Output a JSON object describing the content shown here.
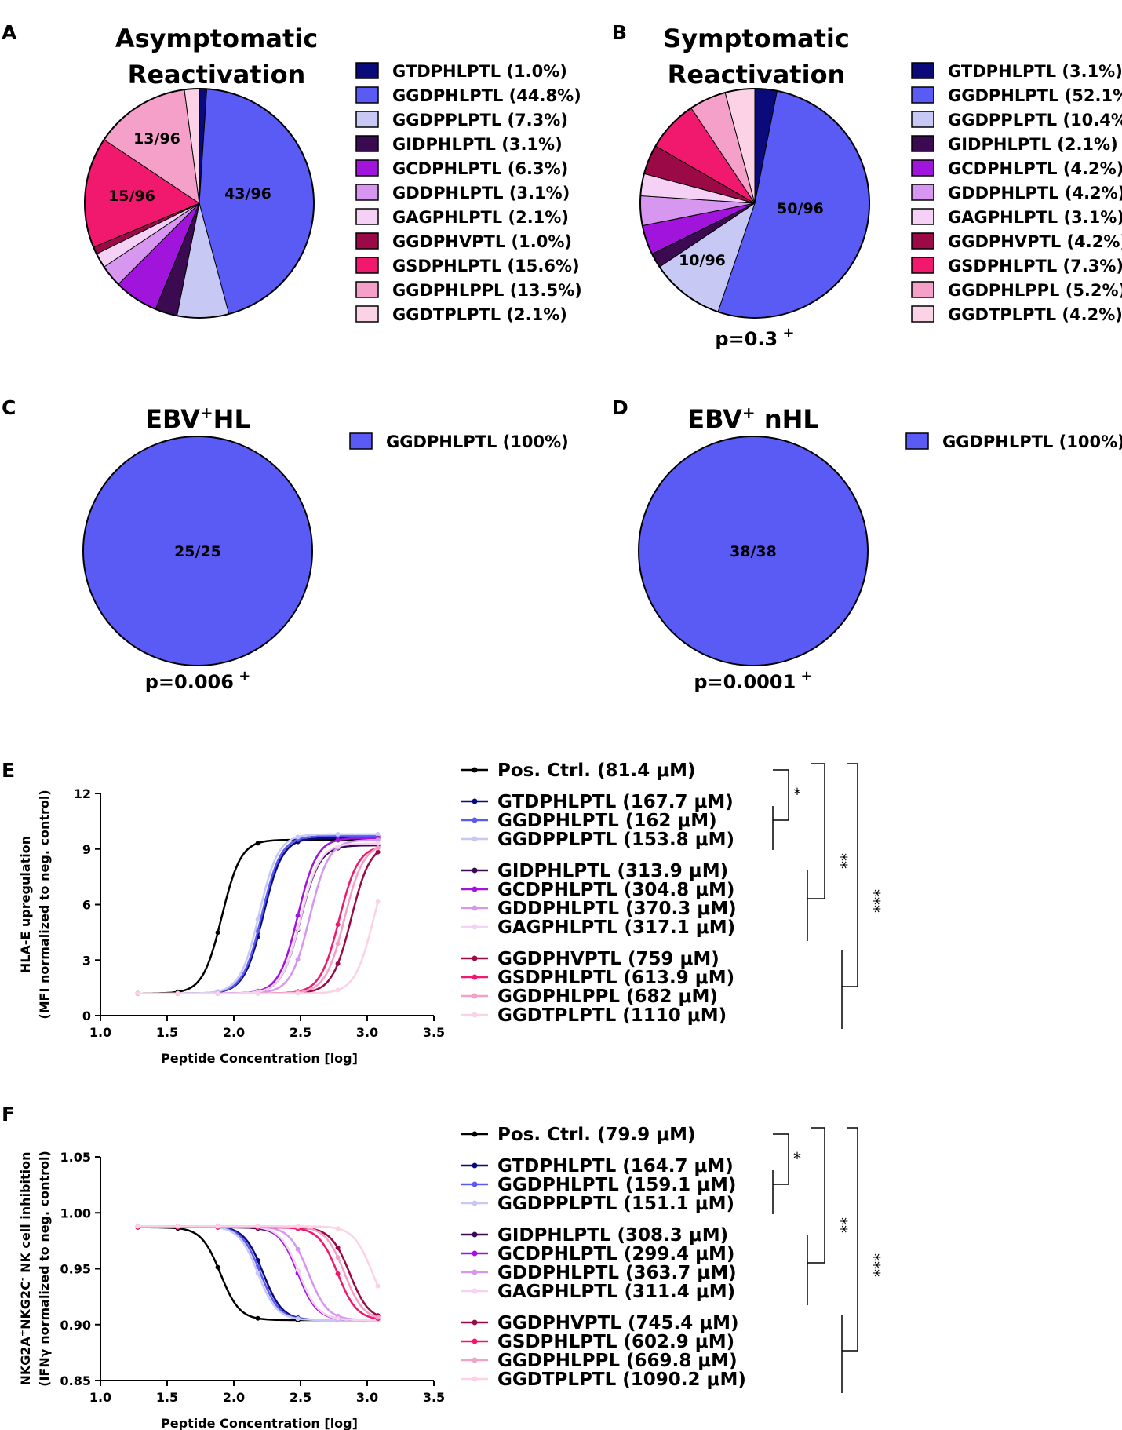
{
  "panels_pie": [
    {
      "letter": "A",
      "title_lines": [
        "Asymptomatic",
        "Reactivation"
      ],
      "pvalue": null,
      "slices": [
        {
          "name": "GTDPHLPTL",
          "pct": "1.0%",
          "count": 1,
          "color": "#0a0a7a"
        },
        {
          "name": "GGDPHLPTL",
          "pct": "44.8%",
          "count": 43,
          "color": "#5a5af5",
          "label": "43/96"
        },
        {
          "name": "GGDPPLPTL",
          "pct": "7.3%",
          "count": 7,
          "color": "#c8c8f5"
        },
        {
          "name": "GIDPHLPTL",
          "pct": "3.1%",
          "count": 3,
          "color": "#3c0a50"
        },
        {
          "name": "GCDPHLPTL",
          "pct": "6.3%",
          "count": 6,
          "color": "#a014dc"
        },
        {
          "name": "GDDPHLPTL",
          "pct": "3.1%",
          "count": 3,
          "color": "#d796f0"
        },
        {
          "name": "GAGPHLPTL",
          "pct": "2.1%",
          "count": 2,
          "color": "#f5d2f5"
        },
        {
          "name": "GGDPHVPTL",
          "pct": "1.0%",
          "count": 1,
          "color": "#9b0a46"
        },
        {
          "name": "GSDPHLPTL",
          "pct": "15.6%",
          "count": 15,
          "color": "#f0196e",
          "label": "15/96"
        },
        {
          "name": "GGDPHLPPL",
          "pct": "13.5%",
          "count": 13,
          "color": "#f5a0c8",
          "label": "13/96"
        },
        {
          "name": "GGDTPLPTL",
          "pct": "2.1%",
          "count": 2,
          "color": "#fcd2e6"
        }
      ]
    },
    {
      "letter": "B",
      "title_lines": [
        "Symptomatic",
        "Reactivation"
      ],
      "pvalue": "p=0.3",
      "slices": [
        {
          "name": "GTDPHLPTL",
          "pct": "3.1%",
          "count": 3,
          "color": "#0a0a7a"
        },
        {
          "name": "GGDPHLPTL",
          "pct": "52.1%",
          "count": 50,
          "color": "#5a5af5",
          "label": "50/96"
        },
        {
          "name": "GGDPPLPTL",
          "pct": "10.4%",
          "count": 10,
          "color": "#c8c8f5",
          "label": "10/96"
        },
        {
          "name": "GIDPHLPTL",
          "pct": "2.1%",
          "count": 2,
          "color": "#3c0a50"
        },
        {
          "name": "GCDPHLPTL",
          "pct": "4.2%",
          "count": 4,
          "color": "#a014dc"
        },
        {
          "name": "GDDPHLPTL",
          "pct": "4.2%",
          "count": 4,
          "color": "#d796f0"
        },
        {
          "name": "GAGPHLPTL",
          "pct": "3.1%",
          "count": 3,
          "color": "#f5d2f5"
        },
        {
          "name": "GGDPHVPTL",
          "pct": "4.2%",
          "count": 4,
          "color": "#9b0a46"
        },
        {
          "name": "GSDPHLPTL",
          "pct": "7.3%",
          "count": 7,
          "color": "#f0196e"
        },
        {
          "name": "GGDPHLPPL",
          "pct": "5.2%",
          "count": 5,
          "color": "#f5a0c8"
        },
        {
          "name": "GGDTPLPTL",
          "pct": "4.2%",
          "count": 4,
          "color": "#fcd2e6"
        }
      ]
    },
    {
      "letter": "C",
      "title_main": "EBV",
      "title_sup": "+",
      "title_tail": "HL",
      "pvalue": "p=0.006",
      "slices": [
        {
          "name": "GGDPHLPTL",
          "pct": "100%",
          "count": 25,
          "color": "#5a5af5",
          "label": "25/25"
        }
      ]
    },
    {
      "letter": "D",
      "title_main": "EBV",
      "title_sup": "+",
      "title_tail": " nHL",
      "pvalue": "p=0.0001",
      "slices": [
        {
          "name": "GGDPHLPTL",
          "pct": "100%",
          "count": 38,
          "color": "#5a5af5",
          "label": "38/38"
        }
      ]
    }
  ],
  "pvalue_sup": "+",
  "chart_data": [
    {
      "type": "line",
      "panel": "E",
      "xlabel": "Peptide Concentration [log]",
      "ylabel_lines": [
        "HLA-E upregulation",
        "(MFI normalized to neg. control)"
      ],
      "xlim": [
        1.0,
        3.5
      ],
      "ylim": [
        0,
        12
      ],
      "xticks": [
        "1.0",
        "1.5",
        "2.0",
        "2.5",
        "3.0",
        "3.5"
      ],
      "yticks": [
        "0",
        "3",
        "6",
        "9",
        "12"
      ],
      "x": [
        1.28,
        1.58,
        1.88,
        2.18,
        2.48,
        2.78,
        3.08
      ],
      "direction": "up",
      "bottom": 1.2,
      "top_default": 9.4,
      "unit": "μM",
      "groups": [
        [
          {
            "name": "Pos. Ctrl.",
            "ec50": "81.4",
            "log": 1.91,
            "color": "#000000",
            "top": 9.5
          }
        ],
        [
          {
            "name": "GTDPHLPTL",
            "ec50": "167.7",
            "log": 2.22,
            "color": "#0a0a7a",
            "top": 9.6
          },
          {
            "name": "GGDPHLPTL",
            "ec50": "162",
            "log": 2.21,
            "color": "#5a5af5",
            "top": 9.7
          },
          {
            "name": "GGDPPLPTL",
            "ec50": "153.8",
            "log": 2.19,
            "color": "#c8c8f5",
            "top": 9.8
          }
        ],
        [
          {
            "name": "GIDPHLPTL",
            "ec50": "313.9",
            "log": 2.5,
            "color": "#3c0a50",
            "top": 9.2
          },
          {
            "name": "GCDPHLPTL",
            "ec50": "304.8",
            "log": 2.48,
            "color": "#a014dc",
            "top": 9.6
          },
          {
            "name": "GDDPHLPTL",
            "ec50": "370.3",
            "log": 2.57,
            "color": "#d796f0",
            "top": 9.5
          },
          {
            "name": "GAGPHLPTL",
            "ec50": "317.1",
            "log": 2.5,
            "color": "#f5d2f5",
            "top": 9.3
          }
        ],
        [
          {
            "name": "GGDPHVPTL",
            "ec50": "759",
            "log": 2.88,
            "color": "#9b0a46",
            "top": 9.3
          },
          {
            "name": "GSDPHLPTL",
            "ec50": "613.9",
            "log": 2.79,
            "color": "#f0196e",
            "top": 9.2
          },
          {
            "name": "GGDPHLPPL",
            "ec50": "682",
            "log": 2.83,
            "color": "#f5a0c8",
            "top": 9.3
          },
          {
            "name": "GGDTPLPTL",
            "ec50": "1110",
            "log": 3.05,
            "color": "#fcd2e6",
            "top": 9.4
          }
        ]
      ],
      "sig_labels": [
        "*",
        "**",
        "***"
      ]
    },
    {
      "type": "line",
      "panel": "F",
      "xlabel": "Peptide Concentration [log]",
      "ylabel_lines": [
        "NKG2A+NKG2C- NK cell inhibition",
        "(IFNγ normalized to neg. control)"
      ],
      "ylabel_sup": {
        "a": "+",
        "c": "-"
      },
      "xlim": [
        1.0,
        3.5
      ],
      "ylim": [
        0.85,
        1.05
      ],
      "xticks": [
        "1.0",
        "1.5",
        "2.0",
        "2.5",
        "3.0",
        "3.5"
      ],
      "yticks": [
        "0.85",
        "0.90",
        "0.95",
        "1.00",
        "1.05"
      ],
      "x": [
        1.28,
        1.58,
        1.88,
        2.18,
        2.48,
        2.78,
        3.08
      ],
      "direction": "down",
      "bottom": 0.904,
      "top_default": 0.988,
      "unit": "μM",
      "groups": [
        [
          {
            "name": "Pos. Ctrl.",
            "ec50": "79.9",
            "log": 1.9,
            "color": "#000000",
            "top": 0.987
          }
        ],
        [
          {
            "name": "GTDPHLPTL",
            "ec50": "164.7",
            "log": 2.22,
            "color": "#0a0a7a",
            "top": 0.988
          },
          {
            "name": "GGDPHLPTL",
            "ec50": "159.1",
            "log": 2.2,
            "color": "#5a5af5",
            "top": 0.988
          },
          {
            "name": "GGDPPLPTL",
            "ec50": "151.1",
            "log": 2.18,
            "color": "#c8c8f5",
            "top": 0.988
          }
        ],
        [
          {
            "name": "GIDPHLPTL",
            "ec50": "308.3",
            "log": 2.49,
            "color": "#3c0a50",
            "top": 0.987
          },
          {
            "name": "GCDPHLPTL",
            "ec50": "299.4",
            "log": 2.48,
            "color": "#a014dc",
            "top": 0.988
          },
          {
            "name": "GDDPHLPTL",
            "ec50": "363.7",
            "log": 2.56,
            "color": "#d796f0",
            "top": 0.988
          },
          {
            "name": "GAGPHLPTL",
            "ec50": "311.4",
            "log": 2.49,
            "color": "#f5d2f5",
            "top": 0.988
          }
        ],
        [
          {
            "name": "GGDPHVPTL",
            "ec50": "745.4",
            "log": 2.87,
            "color": "#9b0a46",
            "top": 0.987
          },
          {
            "name": "GSDPHLPTL",
            "ec50": "602.9",
            "log": 2.78,
            "color": "#f0196e",
            "top": 0.987
          },
          {
            "name": "GGDPHLPPL",
            "ec50": "669.8",
            "log": 2.83,
            "color": "#f5a0c8",
            "top": 0.988
          },
          {
            "name": "GGDTPLPTL",
            "ec50": "1090.2",
            "log": 3.04,
            "color": "#fcd2e6",
            "top": 0.988
          }
        ]
      ],
      "sig_labels": [
        "*",
        "**",
        "***"
      ]
    }
  ]
}
